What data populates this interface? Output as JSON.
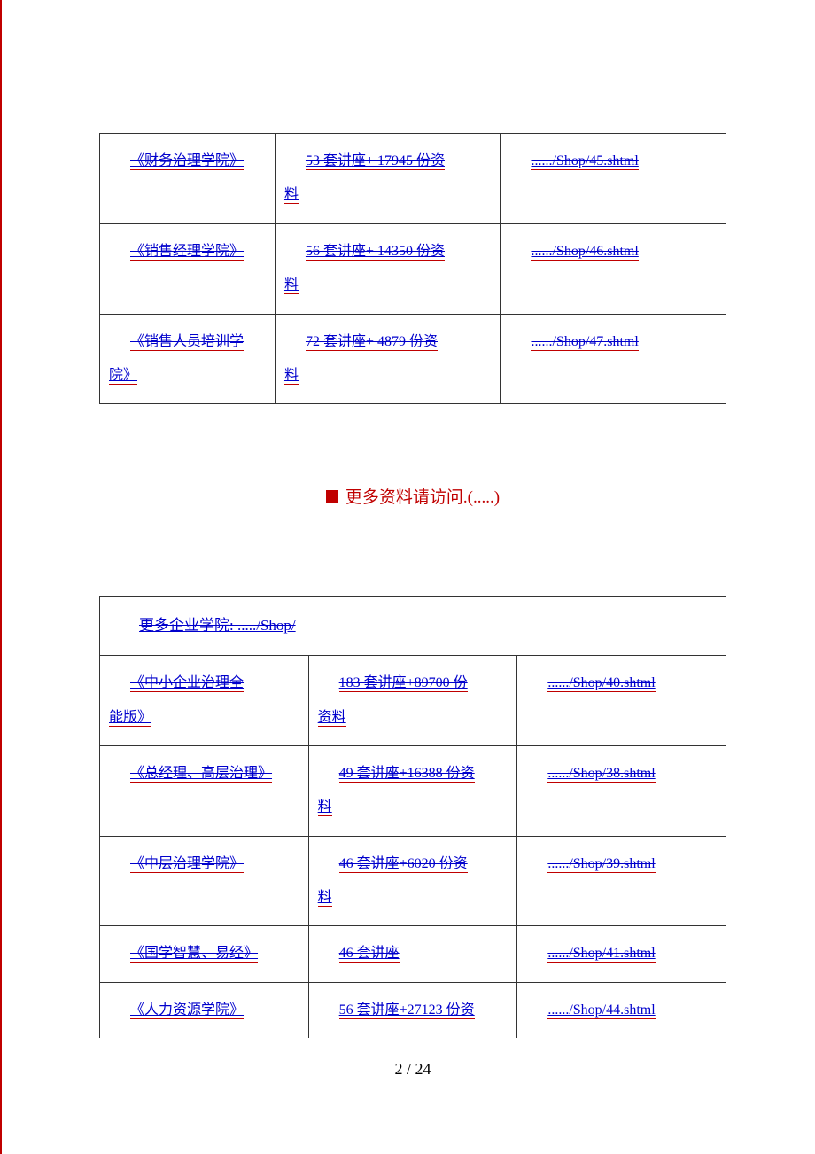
{
  "table1": {
    "rows": [
      {
        "name": "《财务治理学院》",
        "desc_line1": "53 套讲座+ 17945 份资",
        "desc_line2": "料",
        "url": "....../Shop/45.shtml"
      },
      {
        "name": "《销售经理学院》",
        "desc_line1": "56 套讲座+ 14350 份资",
        "desc_line2": "料",
        "url": "....../Shop/46.shtml"
      },
      {
        "name_line1": "《销售人员培训学",
        "name_line2": "院》",
        "desc_line1": "72 套讲座+ 4879 份资",
        "desc_line2": "料",
        "url": "....../Shop/47.shtml"
      }
    ]
  },
  "center_message": "更多资料请访问.(.....)",
  "table2": {
    "header": "更多企业学院: ...../Shop/",
    "rows": [
      {
        "name_line1": "《中小企业治理全",
        "name_line2": "能版》",
        "desc_line1": "183 套讲座+89700 份",
        "desc_line2": "资料",
        "url": "....../Shop/40.shtml"
      },
      {
        "name": "《总经理、高层治理》",
        "desc_line1": "49 套讲座+16388 份资",
        "desc_line2": "料",
        "url": "....../Shop/38.shtml"
      },
      {
        "name": "《中层治理学院》",
        "desc_line1": "46 套讲座+6020 份资",
        "desc_line2": "料",
        "url": "....../Shop/39.shtml"
      },
      {
        "name": "《国学智慧、易经》",
        "desc_single": "46 套讲座",
        "url": "....../Shop/41.shtml"
      },
      {
        "name": "《人力资源学院》",
        "desc_single": "56 套讲座+27123 份资",
        "url": "....../Shop/44.shtml"
      }
    ]
  },
  "page_current": "2",
  "page_total": "24",
  "colors": {
    "link": "#0000cc",
    "accent": "#c00000",
    "border": "#333333"
  }
}
